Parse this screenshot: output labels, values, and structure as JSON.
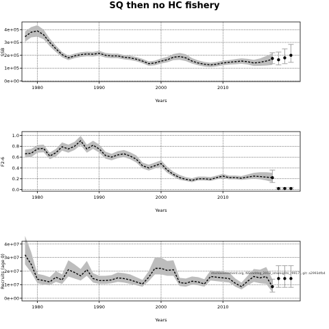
{
  "title": "SQ then no HC fishery",
  "note": "stockassessment.org, NShaddog_2018_smweights_r9917 , git: a2993dfb4",
  "chart_data": [
    {
      "type": "line",
      "name": "ssb",
      "xlabel": "Years",
      "ylabel": "SSB",
      "xlim": [
        1977.5,
        2022.5
      ],
      "ylim": [
        -5000,
        460000
      ],
      "xticks": [
        1980,
        1990,
        2000,
        2010
      ],
      "xtick_labels": [
        "1980",
        "1990",
        "2000",
        "2010"
      ],
      "yticks": [
        0,
        100000,
        200000,
        300000,
        400000
      ],
      "ytick_labels": [
        "0e+00",
        "1e+05",
        "2e+05",
        "3e+05",
        "4e+05"
      ],
      "years": [
        1978,
        1979,
        1980,
        1981,
        1982,
        1983,
        1984,
        1985,
        1986,
        1987,
        1988,
        1989,
        1990,
        1991,
        1992,
        1993,
        1994,
        1995,
        1996,
        1997,
        1998,
        1999,
        2000,
        2001,
        2002,
        2003,
        2004,
        2005,
        2006,
        2007,
        2008,
        2009,
        2010,
        2011,
        2012,
        2013,
        2014,
        2015,
        2016,
        2017,
        2018
      ],
      "values": [
        345000,
        380000,
        390000,
        360000,
        300000,
        250000,
        205000,
        180000,
        195000,
        205000,
        210000,
        208000,
        215000,
        200000,
        195000,
        195000,
        185000,
        180000,
        170000,
        155000,
        135000,
        140000,
        155000,
        165000,
        185000,
        190000,
        180000,
        155000,
        140000,
        130000,
        125000,
        130000,
        140000,
        145000,
        150000,
        155000,
        150000,
        140000,
        145000,
        155000,
        170000
      ],
      "lower": [
        305000,
        340000,
        345000,
        325000,
        270000,
        225000,
        185000,
        162000,
        177000,
        187000,
        192000,
        190000,
        197000,
        182000,
        177000,
        177000,
        168000,
        163000,
        153000,
        138000,
        118000,
        122000,
        135000,
        145000,
        162000,
        165000,
        155000,
        135000,
        122000,
        112000,
        108000,
        113000,
        122000,
        127000,
        130000,
        134000,
        128000,
        117000,
        118000,
        120000,
        125000
      ],
      "upper": [
        385000,
        420000,
        435000,
        400000,
        330000,
        275000,
        225000,
        198000,
        213000,
        223000,
        228000,
        226000,
        235000,
        218000,
        213000,
        213000,
        202000,
        197000,
        187000,
        172000,
        152000,
        158000,
        175000,
        188000,
        210000,
        218000,
        208000,
        178000,
        160000,
        148000,
        142000,
        148000,
        158000,
        163000,
        170000,
        176000,
        172000,
        165000,
        175000,
        195000,
        215000
      ],
      "forecast": [
        {
          "year": 2018,
          "value": 175000,
          "lower": 135000,
          "upper": 220000
        },
        {
          "year": 2019,
          "value": 165000,
          "lower": 125000,
          "upper": 225000
        },
        {
          "year": 2020,
          "value": 180000,
          "lower": 135000,
          "upper": 250000
        },
        {
          "year": 2021,
          "value": 200000,
          "lower": 145000,
          "upper": 285000
        }
      ]
    },
    {
      "type": "line",
      "name": "fbar",
      "xlabel": "Years",
      "ylabel": "F2-6",
      "xlim": [
        1977.5,
        2022.5
      ],
      "ylim": [
        -0.03,
        1.07
      ],
      "xticks": [
        1980,
        1990,
        2000,
        2010
      ],
      "xtick_labels": [
        "1980",
        "1990",
        "2000",
        "2010"
      ],
      "yticks": [
        0,
        0.2,
        0.4,
        0.6,
        0.8,
        1.0
      ],
      "ytick_labels": [
        "0.0",
        "0.2",
        "0.4",
        "0.6",
        "0.8",
        "1.0"
      ],
      "years": [
        1978,
        1979,
        1980,
        1981,
        1982,
        1983,
        1984,
        1985,
        1986,
        1987,
        1988,
        1989,
        1990,
        1991,
        1992,
        1993,
        1994,
        1995,
        1996,
        1997,
        1998,
        1999,
        2000,
        2001,
        2002,
        2003,
        2004,
        2005,
        2006,
        2007,
        2008,
        2009,
        2010,
        2011,
        2012,
        2013,
        2014,
        2015,
        2016,
        2017,
        2018
      ],
      "values": [
        0.66,
        0.67,
        0.75,
        0.76,
        0.62,
        0.68,
        0.79,
        0.75,
        0.8,
        0.9,
        0.75,
        0.82,
        0.75,
        0.63,
        0.6,
        0.64,
        0.66,
        0.62,
        0.56,
        0.44,
        0.4,
        0.44,
        0.48,
        0.36,
        0.28,
        0.22,
        0.19,
        0.17,
        0.2,
        0.2,
        0.19,
        0.22,
        0.25,
        0.22,
        0.22,
        0.21,
        0.23,
        0.25,
        0.24,
        0.23,
        0.22
      ],
      "lower": [
        0.59,
        0.6,
        0.68,
        0.69,
        0.56,
        0.61,
        0.72,
        0.68,
        0.73,
        0.82,
        0.68,
        0.75,
        0.68,
        0.57,
        0.54,
        0.58,
        0.6,
        0.56,
        0.5,
        0.39,
        0.35,
        0.39,
        0.42,
        0.31,
        0.24,
        0.18,
        0.16,
        0.14,
        0.17,
        0.17,
        0.16,
        0.19,
        0.21,
        0.19,
        0.19,
        0.18,
        0.19,
        0.2,
        0.19,
        0.17,
        0.14
      ],
      "upper": [
        0.74,
        0.75,
        0.82,
        0.83,
        0.68,
        0.75,
        0.87,
        0.83,
        0.88,
        0.99,
        0.83,
        0.9,
        0.83,
        0.7,
        0.66,
        0.71,
        0.73,
        0.69,
        0.63,
        0.5,
        0.46,
        0.5,
        0.54,
        0.42,
        0.33,
        0.27,
        0.23,
        0.21,
        0.24,
        0.24,
        0.23,
        0.26,
        0.29,
        0.26,
        0.26,
        0.25,
        0.28,
        0.31,
        0.32,
        0.32,
        0.31
      ],
      "forecast": [
        {
          "year": 2018,
          "value": 0.22,
          "lower": 0.13,
          "upper": 0.36
        },
        {
          "year": 2019,
          "value": 0.02,
          "lower": 0.01,
          "upper": 0.04
        },
        {
          "year": 2020,
          "value": 0.02,
          "lower": 0.01,
          "upper": 0.04
        },
        {
          "year": 2021,
          "value": 0.02,
          "lower": 0.01,
          "upper": 0.04
        }
      ]
    },
    {
      "type": "line",
      "name": "recruits",
      "xlabel": "Years",
      "ylabel": "Recruits (age 0)",
      "xlim": [
        1977.5,
        2022.5
      ],
      "ylim": [
        -2000000,
        42000000
      ],
      "xticks": [
        1980,
        1990,
        2000,
        2010
      ],
      "xtick_labels": [
        "1980",
        "1990",
        "2000",
        "2010"
      ],
      "yticks": [
        0,
        10000000,
        20000000,
        30000000,
        40000000
      ],
      "ytick_labels": [
        "0e+00",
        "1e+07",
        "2e+07",
        "3e+07",
        "4e+07"
      ],
      "years": [
        1978,
        1979,
        1980,
        1981,
        1982,
        1983,
        1984,
        1985,
        1986,
        1987,
        1988,
        1989,
        1990,
        1991,
        1992,
        1993,
        1994,
        1995,
        1996,
        1997,
        1998,
        1999,
        2000,
        2001,
        2002,
        2003,
        2004,
        2005,
        2006,
        2007,
        2008,
        2009,
        2010,
        2011,
        2012,
        2013,
        2014,
        2015,
        2016,
        2017,
        2018
      ],
      "values": [
        32000000,
        25000000,
        14000000,
        13000000,
        12000000,
        15500000,
        13500000,
        21000000,
        19000000,
        16500000,
        21000000,
        14500000,
        13000000,
        13000000,
        13500000,
        15000000,
        14500000,
        13500000,
        12000000,
        10500000,
        15500000,
        22000000,
        22000000,
        20500000,
        21000000,
        11500000,
        11000000,
        12500000,
        12000000,
        10500000,
        16000000,
        15500000,
        15000000,
        14500000,
        11000000,
        8500000,
        12500000,
        16000000,
        15000000,
        16000000,
        8500000
      ],
      "lower": [
        25000000,
        19000000,
        11000000,
        10000000,
        9500000,
        12000000,
        10500000,
        16000000,
        14500000,
        13000000,
        16500000,
        11500000,
        10500000,
        10500000,
        11000000,
        12000000,
        11500000,
        10500000,
        9500000,
        8500000,
        12500000,
        17500000,
        17500000,
        16500000,
        16500000,
        9000000,
        8500000,
        10000000,
        9500000,
        8500000,
        13000000,
        12500000,
        12000000,
        11500000,
        8500000,
        6500000,
        9500000,
        12000000,
        11000000,
        10500000,
        4500000
      ],
      "upper": [
        46000000,
        34000000,
        18000000,
        17000000,
        15500000,
        20000000,
        17500000,
        28000000,
        25000000,
        21500000,
        27500000,
        18500000,
        16500000,
        16500000,
        17000000,
        19000000,
        18500000,
        17500000,
        15500000,
        13500000,
        20000000,
        30000000,
        30000000,
        27500000,
        28000000,
        15000000,
        14500000,
        16000000,
        15500000,
        14000000,
        20500000,
        20000000,
        19500000,
        19000000,
        14500000,
        11500000,
        16500000,
        21500000,
        21000000,
        23000000,
        14000000
      ],
      "forecast": [
        {
          "year": 2018,
          "value": 8500000,
          "lower": 4500000,
          "upper": 14000000
        },
        {
          "year": 2019,
          "value": 14500000,
          "lower": 8000000,
          "upper": 24000000
        },
        {
          "year": 2020,
          "value": 14500000,
          "lower": 8000000,
          "upper": 24000000
        },
        {
          "year": 2021,
          "value": 14500000,
          "lower": 8000000,
          "upper": 24000000
        }
      ]
    }
  ]
}
